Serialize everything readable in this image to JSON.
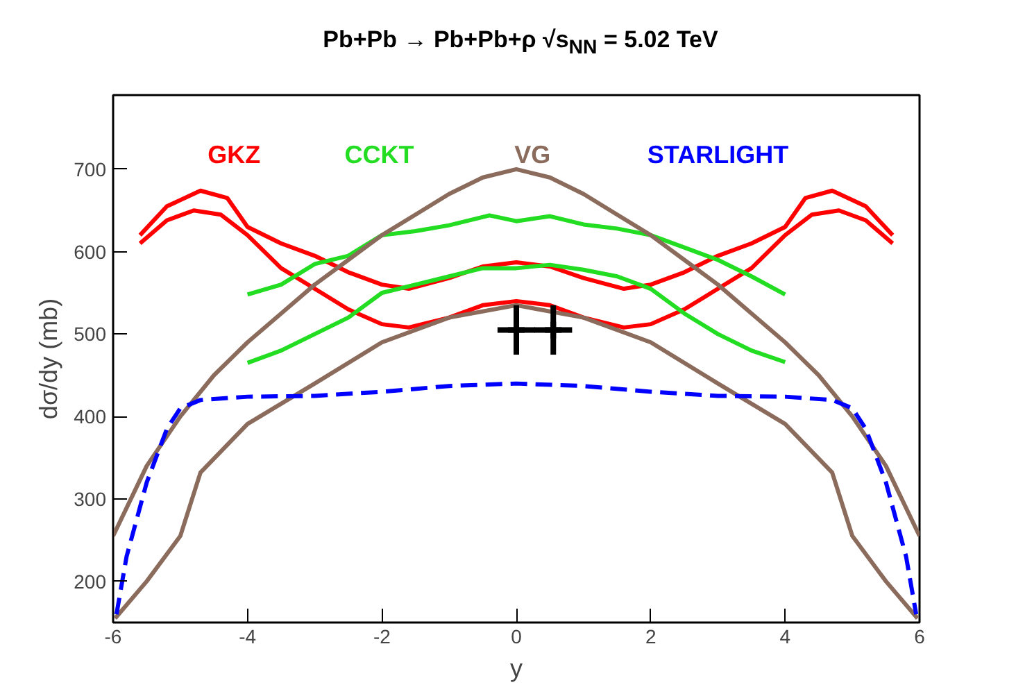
{
  "chart_data": {
    "type": "line",
    "title": "Pb+Pb → Pb+Pb+ρ  √s$_{NN}$ = 5.02 TeV",
    "xlabel": "y",
    "ylabel": "dσ/dy (mb)",
    "xlim": [
      -6,
      6
    ],
    "ylim": [
      150,
      790
    ],
    "xticks": [
      -6,
      -4,
      -2,
      0,
      2,
      4,
      6
    ],
    "yticks": [
      200,
      300,
      400,
      500,
      600,
      700
    ],
    "grid": false,
    "line_style": "solid",
    "series": [
      {
        "name": "GKZ",
        "color": "#ff0000",
        "x": [
          -5.6,
          -5.2,
          -4.7,
          -4.3,
          -4.0,
          -3.5,
          -3.0,
          -2.5,
          -2.0,
          -1.6,
          -1.0,
          -0.5,
          0,
          0.5,
          1.0,
          1.6,
          2.0,
          2.5,
          3.0,
          3.5,
          4.0,
          4.3,
          4.7,
          5.2,
          5.6
        ],
        "values": [
          620,
          655,
          674,
          665,
          630,
          610,
          595,
          575,
          560,
          555,
          568,
          582,
          587,
          582,
          568,
          555,
          560,
          575,
          595,
          610,
          630,
          665,
          674,
          655,
          620
        ]
      },
      {
        "color": "#ff0000",
        "x": [
          -5.6,
          -5.2,
          -4.8,
          -4.4,
          -4.0,
          -3.5,
          -3.0,
          -2.5,
          -2.0,
          -1.6,
          -1.0,
          -0.5,
          0,
          0.5,
          1.0,
          1.6,
          2.0,
          2.5,
          3.0,
          3.5,
          4.0,
          4.4,
          4.8,
          5.2,
          5.6
        ],
        "values": [
          610,
          638,
          650,
          645,
          620,
          580,
          555,
          530,
          512,
          508,
          520,
          535,
          540,
          535,
          520,
          508,
          512,
          530,
          555,
          580,
          620,
          645,
          650,
          638,
          610
        ]
      },
      {
        "name": "CCKT",
        "color": "#22dd22",
        "x": [
          -4,
          -3.5,
          -3,
          -2.5,
          -2,
          -1.5,
          -1,
          -0.4,
          0,
          0.5,
          1,
          1.5,
          2,
          2.5,
          3,
          3.5,
          4
        ],
        "values": [
          548,
          560,
          585,
          595,
          620,
          625,
          632,
          644,
          637,
          643,
          633,
          628,
          620,
          605,
          590,
          570,
          548
        ]
      },
      {
        "color": "#22dd22",
        "x": [
          -4,
          -3.5,
          -3,
          -2.5,
          -2,
          -1.5,
          -1,
          -0.5,
          0,
          0.5,
          1,
          1.5,
          2,
          2.5,
          3,
          3.5,
          4
        ],
        "values": [
          465,
          480,
          500,
          520,
          550,
          560,
          570,
          580,
          580,
          584,
          578,
          570,
          555,
          525,
          500,
          480,
          466
        ]
      },
      {
        "name": "VG",
        "color": "#8b6b5b",
        "x": [
          -6,
          -5.5,
          -5,
          -4.5,
          -4,
          -3.5,
          -3,
          -2.5,
          -2,
          -1.5,
          -1,
          -0.5,
          0,
          0.5,
          1,
          1.5,
          2,
          2.5,
          3,
          3.5,
          4,
          4.5,
          5,
          5.5,
          6
        ],
        "values": [
          255,
          340,
          400,
          450,
          490,
          525,
          560,
          590,
          620,
          645,
          670,
          690,
          700,
          690,
          670,
          645,
          620,
          590,
          560,
          525,
          490,
          450,
          400,
          340,
          255
        ]
      },
      {
        "color": "#8b6b5b",
        "x": [
          -5.97,
          -5.5,
          -5,
          -4.7,
          -4,
          -3,
          -2,
          -1,
          0,
          1,
          2,
          3,
          4,
          4.7,
          5,
          5.5,
          5.97
        ],
        "values": [
          155,
          200,
          255,
          332,
          391,
          440,
          490,
          520,
          535,
          520,
          490,
          440,
          391,
          332,
          255,
          200,
          155
        ]
      },
      {
        "name": "STARLIGHT",
        "color": "#0000ff",
        "line_style": "dashed",
        "x": [
          -5.95,
          -5.8,
          -5.5,
          -5.2,
          -5,
          -4.7,
          -4,
          -3,
          -2,
          -1,
          0,
          1,
          2,
          3,
          4,
          4.7,
          5,
          5.2,
          5.5,
          5.8,
          5.95
        ],
        "values": [
          160,
          230,
          320,
          385,
          410,
          420,
          424,
          425,
          430,
          437,
          440,
          437,
          430,
          425,
          424,
          420,
          410,
          385,
          320,
          230,
          160
        ]
      },
      {
        "type": "scatter",
        "marker": "cross",
        "color": "#000000",
        "x": [
          0.0,
          0.55
        ],
        "values": [
          505,
          505
        ],
        "errors": [
          30,
          30
        ],
        "xerrors": [
          0.28,
          0.28
        ]
      }
    ]
  }
}
